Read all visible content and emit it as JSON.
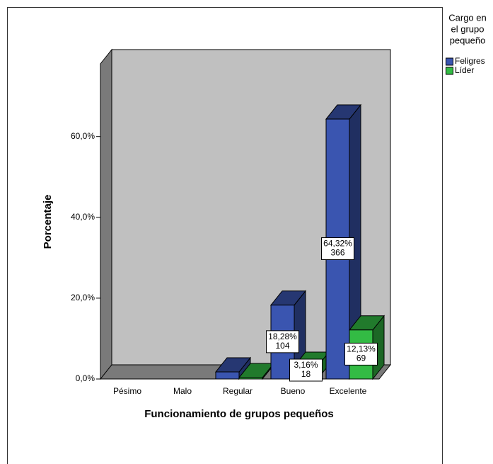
{
  "chart_data": {
    "type": "bar3d",
    "y_label": "Porcentaje",
    "x_label": "Funcionamiento de grupos pequeños",
    "legend_title": [
      "Cargo en",
      "el grupo",
      "pequeño"
    ],
    "categories": [
      "Pésimo",
      "Malo",
      "Regular",
      "Bueno",
      "Excelente"
    ],
    "series": [
      {
        "name": "Feligres",
        "color": "#3a55b0",
        "values": [
          null,
          null,
          1.75,
          18.28,
          64.32
        ],
        "value_labels": [
          null,
          null,
          null,
          "18,28%",
          "64,32%"
        ],
        "counts": [
          null,
          null,
          null,
          104,
          366
        ]
      },
      {
        "name": "Líder",
        "color": "#33bb44",
        "values": [
          null,
          null,
          0.35,
          3.16,
          12.13
        ],
        "value_labels": [
          null,
          null,
          null,
          "3,16%",
          "12,13%"
        ],
        "counts": [
          null,
          null,
          null,
          18,
          69
        ]
      }
    ],
    "ylim": [
      0,
      78
    ],
    "yticks": [
      {
        "value": 0,
        "label": "0,0%"
      },
      {
        "value": 20,
        "label": "20,0%"
      },
      {
        "value": 40,
        "label": "40,0%"
      },
      {
        "value": 60,
        "label": "60,0%"
      }
    ],
    "legend_position": "right"
  }
}
